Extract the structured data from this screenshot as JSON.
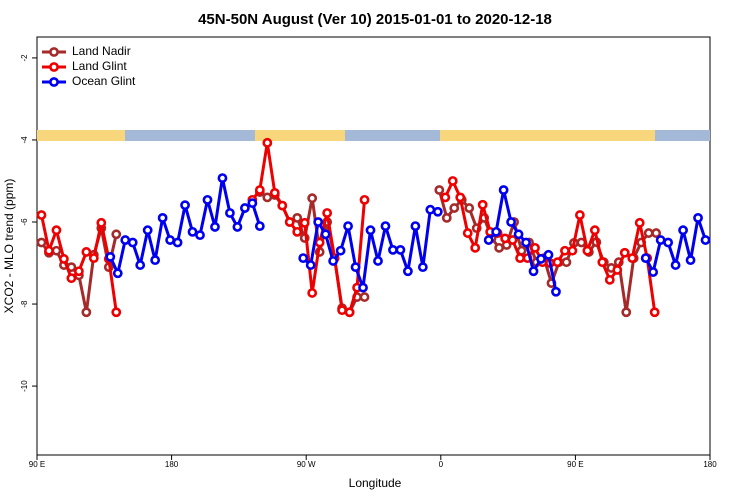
{
  "chart_data": {
    "type": "line",
    "title": "45N-50N August (Ver 10)   2015-01-01 to 2020-12-18",
    "x_label": "Longitude",
    "y_label": "XCO2 - MLO trend (ppm)",
    "xlim": [
      90,
      540
    ],
    "xticks": [
      {
        "value": 90,
        "label": "90 E"
      },
      180,
      {
        "value": 270,
        "label": "90 W"
      },
      {
        "value": 360,
        "label": "0"
      },
      {
        "value": 450,
        "label": "90 E"
      },
      {
        "value": 540,
        "label": "180"
      }
    ],
    "ylim": [
      -11.68,
      -1.49
    ],
    "yticks": [
      -2,
      -4,
      -6,
      -8,
      -10
    ],
    "legend": "topleft",
    "series": [
      {
        "name": "Land Nadir",
        "color": "#a52a2a",
        "x": [
          93,
          98,
          103,
          108,
          113,
          118,
          123,
          128,
          133,
          138,
          143,
          null,
          239,
          244,
          249,
          254,
          259,
          264,
          269,
          274,
          279,
          284,
          289,
          294,
          299,
          304,
          309,
          null,
          359,
          364,
          369,
          374,
          379,
          384,
          389,
          394,
          399,
          404,
          409,
          414,
          419,
          424,
          429,
          434,
          439,
          444,
          449,
          454,
          459,
          464,
          469,
          474,
          479,
          484,
          489,
          494,
          499,
          504
        ],
        "values": [
          -6.5,
          -6.75,
          -6.7,
          -7.05,
          -7.1,
          -7.3,
          -8.2,
          -6.8,
          -6.15,
          -7.1,
          -6.3,
          null,
          -5.27,
          -5.4,
          -5.34,
          -5.6,
          -6.0,
          -5.9,
          -6.39,
          -5.42,
          -6.73,
          -6.0,
          -6.88,
          -8.1,
          -8.2,
          -7.83,
          -7.83,
          null,
          -5.22,
          -5.9,
          -5.66,
          -5.46,
          -5.66,
          -6.15,
          -5.9,
          -6.39,
          -6.63,
          -6.56,
          -6.0,
          -6.7,
          -6.5,
          -6.98,
          -6.88,
          -7.49,
          -6.98,
          -6.98,
          -6.51,
          -6.5,
          -6.73,
          -6.49,
          -6.98,
          -7.12,
          -6.98,
          -8.2,
          -6.88,
          -6.5,
          -6.27,
          -6.27
        ]
      },
      {
        "name": "Land Glint",
        "color": "#ee0000",
        "x": [
          93,
          98,
          103,
          108,
          113,
          118,
          123,
          128,
          133,
          138,
          143,
          null,
          234,
          239,
          244,
          249,
          254,
          259,
          264,
          269,
          274,
          279,
          284,
          289,
          294,
          299,
          304,
          309,
          null,
          363,
          368,
          373,
          378,
          383,
          388,
          393,
          398,
          403,
          408,
          413,
          418,
          423,
          428,
          433,
          438,
          443,
          448,
          453,
          458,
          463,
          468,
          473,
          478,
          483,
          488,
          493,
          498,
          503
        ],
        "values": [
          -5.83,
          -6.7,
          -6.2,
          -6.9,
          -7.37,
          -7.2,
          -6.73,
          -6.88,
          -6.02,
          -6.9,
          -8.2,
          null,
          -5.46,
          -5.22,
          -4.07,
          -5.29,
          -5.6,
          -6.0,
          -6.24,
          -6.02,
          -7.73,
          -6.5,
          -5.78,
          -6.88,
          -8.15,
          -8.2,
          -7.6,
          -5.46,
          null,
          -5.4,
          -5.0,
          -5.4,
          -6.27,
          -6.63,
          -5.58,
          -6.24,
          -6.27,
          -6.4,
          -6.44,
          -6.88,
          -6.88,
          -6.63,
          -6.98,
          -7.0,
          -6.98,
          -6.7,
          -6.7,
          -5.83,
          -6.7,
          -6.2,
          -6.98,
          -7.41,
          -7.17,
          -6.75,
          -6.88,
          -6.02,
          -6.88,
          -8.2
        ]
      },
      {
        "name": "Ocean Glint",
        "color": "#0000ee",
        "x": [
          139,
          144,
          149,
          154,
          159,
          164,
          169,
          174,
          179,
          184,
          189,
          194,
          199,
          204,
          209,
          214,
          219,
          224,
          229,
          234,
          239,
          null,
          268,
          273,
          278,
          283,
          288,
          293,
          298,
          303,
          308,
          313,
          318,
          323,
          328,
          333,
          338,
          343,
          348,
          353,
          358,
          null,
          392,
          397,
          402,
          407,
          412,
          417,
          422,
          427,
          432,
          437,
          null,
          497,
          502,
          507,
          512,
          517,
          522,
          527,
          532,
          537
        ],
        "values": [
          -6.85,
          -7.25,
          -6.44,
          -6.5,
          -7.05,
          -6.2,
          -6.93,
          -5.9,
          -6.44,
          -6.5,
          -5.59,
          -6.24,
          -6.32,
          -5.46,
          -6.12,
          -4.93,
          -5.78,
          -6.12,
          -5.66,
          -5.54,
          -6.1,
          null,
          -6.88,
          -7.05,
          -6.0,
          -6.3,
          -6.95,
          -6.7,
          -6.1,
          -7.1,
          -7.6,
          -6.2,
          -6.95,
          -6.1,
          -6.68,
          -6.68,
          -7.2,
          -6.1,
          -7.1,
          -5.7,
          -5.75,
          null,
          -6.44,
          -6.24,
          -5.22,
          -6.0,
          -6.3,
          -6.5,
          -7.2,
          -6.9,
          -6.8,
          -7.7,
          null,
          -6.88,
          -7.22,
          -6.44,
          -6.5,
          -7.05,
          -6.2,
          -6.93,
          -5.9,
          -6.44
        ]
      }
    ]
  }
}
